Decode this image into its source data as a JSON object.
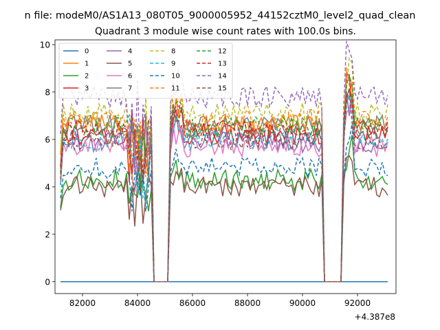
{
  "chart_data": {
    "type": "line",
    "suptitle": "n file: modeM0/AS1A13_080T05_9000005952_44152cztM0_level2_quad_clean",
    "title": "Quadrant 3 module wise count rates with 100.0s bins.",
    "xlabel": "",
    "ylabel": "",
    "x_offset_label": "+4.387e8",
    "xlim": [
      81000,
      93400
    ],
    "ylim": [
      -0.5,
      10.2
    ],
    "xticks": [
      82000,
      84000,
      86000,
      88000,
      90000,
      92000
    ],
    "xtick_labels": [
      "82000",
      "84000",
      "86000",
      "88000",
      "90000",
      "92000"
    ],
    "yticks": [
      0,
      2,
      4,
      6,
      8,
      10
    ],
    "ytick_labels": [
      "0",
      "2",
      "4",
      "6",
      "8",
      "10"
    ],
    "grid": false,
    "legend_position": "upper-left",
    "legend_columns": 4,
    "x_start": 81200,
    "x_step": 100,
    "n_points": 120,
    "gaps": [
      [
        84500,
        85200
      ],
      [
        90700,
        91500
      ]
    ],
    "series": [
      {
        "name": "0",
        "color": "#1f77b4",
        "dash": false,
        "level": 0.0,
        "profile": "flat"
      },
      {
        "name": "1",
        "color": "#ff7f0e",
        "dash": false,
        "level": 6.6,
        "profile": "normal"
      },
      {
        "name": "2",
        "color": "#2ca02c",
        "dash": false,
        "level": 4.3,
        "profile": "normal"
      },
      {
        "name": "3",
        "color": "#d62728",
        "dash": false,
        "level": 6.2,
        "profile": "normal"
      },
      {
        "name": "4",
        "color": "#9467bd",
        "dash": false,
        "level": 5.9,
        "profile": "normal"
      },
      {
        "name": "5",
        "color": "#8c564b",
        "dash": false,
        "level": 4.0,
        "profile": "normal"
      },
      {
        "name": "6",
        "color": "#e377c2",
        "dash": false,
        "level": 5.7,
        "profile": "normal"
      },
      {
        "name": "7",
        "color": "#7f7f7f",
        "dash": false,
        "level": 6.6,
        "profile": "normal"
      },
      {
        "name": "8",
        "color": "#bcbd22",
        "dash": true,
        "level": 7.1,
        "profile": "normal"
      },
      {
        "name": "9",
        "color": "#17becf",
        "dash": true,
        "level": 6.0,
        "profile": "normal"
      },
      {
        "name": "10",
        "color": "#1f77b4",
        "dash": true,
        "level": 4.8,
        "profile": "normal"
      },
      {
        "name": "11",
        "color": "#ff7f0e",
        "dash": true,
        "level": 6.8,
        "profile": "normal"
      },
      {
        "name": "12",
        "color": "#2ca02c",
        "dash": true,
        "level": 6.5,
        "profile": "normal"
      },
      {
        "name": "13",
        "color": "#d62728",
        "dash": true,
        "level": 6.4,
        "profile": "normal"
      },
      {
        "name": "14",
        "color": "#9467bd",
        "dash": true,
        "level": 7.8,
        "profile": "normal"
      },
      {
        "name": "15",
        "color": "#8c564b",
        "dash": true,
        "level": 6.0,
        "profile": "normal"
      }
    ]
  }
}
